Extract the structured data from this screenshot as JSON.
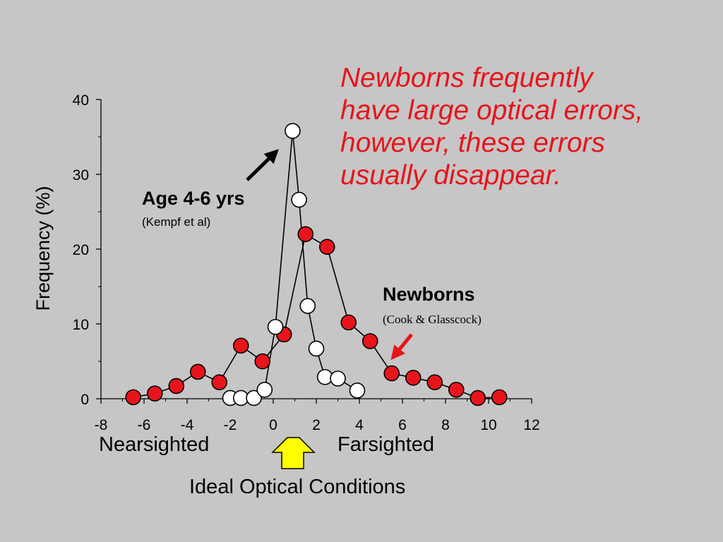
{
  "note": "Newborns frequently\nhave large optical errors,\nhowever, these errors\nusually disappear.",
  "labels": {
    "age_title": "Age 4-6 yrs",
    "age_cite": "(Kempf et al)",
    "newborn_title": "Newborns",
    "newborn_cite": "(Cook & Glasscock)",
    "nearsighted": "Nearsighted",
    "farsighted": "Farsighted",
    "ideal": "Ideal Optical Conditions"
  },
  "colors": {
    "background": "#c6c6c6",
    "newborn_fill": "#e8141b",
    "age_fill": "#ffffff",
    "note_text": "#e8141b",
    "ideal_arrow": "#ffff00"
  },
  "chart_data": {
    "type": "line",
    "xlabel": "",
    "ylabel": "Frequency (%)",
    "xlim": [
      -8,
      12
    ],
    "ylim": [
      0,
      40
    ],
    "xticks": [
      -8,
      -6,
      -4,
      -2,
      0,
      2,
      4,
      6,
      8,
      10,
      12
    ],
    "yticks": [
      0,
      10,
      20,
      30,
      40
    ],
    "grid": false,
    "series": [
      {
        "name": "Newborns",
        "marker": "filled-red",
        "points": [
          [
            -6.5,
            0.2
          ],
          [
            -5.5,
            0.7
          ],
          [
            -4.5,
            1.7
          ],
          [
            -3.5,
            3.6
          ],
          [
            -2.5,
            2.2
          ],
          [
            -1.5,
            7.1
          ],
          [
            -0.5,
            5.0
          ],
          [
            0.5,
            8.6
          ],
          [
            1.5,
            22.0
          ],
          [
            2.5,
            20.3
          ],
          [
            3.5,
            10.2
          ],
          [
            4.5,
            7.7
          ],
          [
            5.5,
            3.4
          ],
          [
            6.5,
            2.8
          ],
          [
            7.5,
            2.2
          ],
          [
            8.5,
            1.2
          ],
          [
            9.5,
            0.1
          ],
          [
            10.5,
            0.2
          ]
        ]
      },
      {
        "name": "Age 4-6 yrs",
        "marker": "open-white",
        "points": [
          [
            -2.0,
            0.1
          ],
          [
            -1.5,
            0.1
          ],
          [
            -0.9,
            0.1
          ],
          [
            -0.4,
            1.2
          ],
          [
            0.1,
            9.6
          ],
          [
            0.9,
            35.8
          ],
          [
            1.2,
            26.6
          ],
          [
            1.6,
            12.4
          ],
          [
            2.0,
            6.7
          ],
          [
            2.4,
            2.9
          ],
          [
            3.0,
            2.7
          ],
          [
            3.9,
            1.1
          ]
        ]
      }
    ]
  }
}
